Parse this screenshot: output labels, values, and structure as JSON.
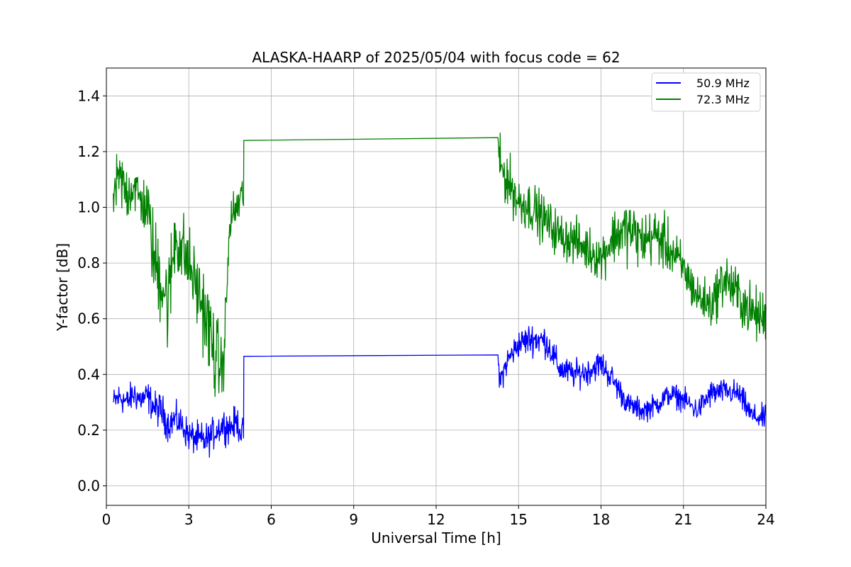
{
  "chart_data": {
    "type": "line",
    "title": "ALASKA-HAARP of 2025/05/04 with focus code = 62",
    "xlabel": "Universal Time [h]",
    "ylabel": "Y-factor [dB]",
    "xlim": [
      0,
      24
    ],
    "ylim": [
      -0.07,
      1.5
    ],
    "x_ticks": [
      "0",
      "3",
      "6",
      "9",
      "12",
      "15",
      "18",
      "21",
      "24"
    ],
    "x_tick_values": [
      0,
      3,
      6,
      9,
      12,
      15,
      18,
      21,
      24
    ],
    "y_ticks": [
      "0.0",
      "0.2",
      "0.4",
      "0.6",
      "0.8",
      "1.0",
      "1.2",
      "1.4"
    ],
    "y_tick_values": [
      0.0,
      0.2,
      0.4,
      0.6,
      0.8,
      1.0,
      1.2,
      1.4
    ],
    "grid": true,
    "legend_position": "top-right",
    "series": [
      {
        "name": "50.9 MHz",
        "color": "#0000ff",
        "points": [
          [
            0.25,
            0.3
          ],
          [
            0.5,
            0.32
          ],
          [
            0.75,
            0.3
          ],
          [
            1.0,
            0.33
          ],
          [
            1.25,
            0.31
          ],
          [
            1.5,
            0.32
          ],
          [
            1.75,
            0.28
          ],
          [
            2.0,
            0.27
          ],
          [
            2.25,
            0.22
          ],
          [
            2.5,
            0.24
          ],
          [
            2.75,
            0.22
          ],
          [
            3.0,
            0.18
          ],
          [
            3.25,
            0.17
          ],
          [
            3.5,
            0.16
          ],
          [
            3.75,
            0.17
          ],
          [
            4.0,
            0.2
          ],
          [
            4.25,
            0.22
          ],
          [
            4.5,
            0.21
          ],
          [
            4.75,
            0.23
          ],
          [
            4.99,
            0.18
          ],
          [
            5.0,
            0.465
          ],
          [
            14.25,
            0.47
          ],
          [
            14.3,
            0.37
          ],
          [
            14.6,
            0.45
          ],
          [
            15.0,
            0.51
          ],
          [
            15.5,
            0.53
          ],
          [
            16.0,
            0.52
          ],
          [
            16.5,
            0.42
          ],
          [
            17.0,
            0.4
          ],
          [
            17.5,
            0.41
          ],
          [
            18.0,
            0.44
          ],
          [
            18.5,
            0.37
          ],
          [
            19.0,
            0.29
          ],
          [
            19.5,
            0.27
          ],
          [
            20.0,
            0.29
          ],
          [
            20.5,
            0.33
          ],
          [
            21.0,
            0.31
          ],
          [
            21.5,
            0.27
          ],
          [
            22.0,
            0.33
          ],
          [
            22.5,
            0.34
          ],
          [
            23.0,
            0.33
          ],
          [
            23.5,
            0.25
          ],
          [
            24.0,
            0.24
          ]
        ],
        "spread": [
          0.06,
          0.07,
          0.06,
          0.07,
          0.06,
          0.07,
          0.07,
          0.08,
          0.07,
          0.07,
          0.07,
          0.07,
          0.07,
          0.08,
          0.07,
          0.07,
          0.07,
          0.07,
          0.07,
          0.07,
          0,
          0,
          0.06,
          0.06,
          0.06,
          0.07,
          0.07,
          0.06,
          0.06,
          0.06,
          0.06,
          0.06,
          0.05,
          0.05,
          0.05,
          0.05,
          0.05,
          0.05,
          0.06,
          0.05,
          0.06,
          0.05,
          0.06
        ]
      },
      {
        "name": "72.3 MHz",
        "color": "#008000",
        "points": [
          [
            0.25,
            1.05
          ],
          [
            0.5,
            1.1
          ],
          [
            0.75,
            1.05
          ],
          [
            1.0,
            1.08
          ],
          [
            1.25,
            1.02
          ],
          [
            1.5,
            1.0
          ],
          [
            1.75,
            0.8
          ],
          [
            2.0,
            0.75
          ],
          [
            2.25,
            0.65
          ],
          [
            2.5,
            0.9
          ],
          [
            2.75,
            0.85
          ],
          [
            3.0,
            0.8
          ],
          [
            3.25,
            0.72
          ],
          [
            3.5,
            0.65
          ],
          [
            3.75,
            0.55
          ],
          [
            4.0,
            0.45
          ],
          [
            4.25,
            0.42
          ],
          [
            4.5,
            0.95
          ],
          [
            4.75,
            1.0
          ],
          [
            4.99,
            1.05
          ],
          [
            5.0,
            1.24
          ],
          [
            14.25,
            1.25
          ],
          [
            14.3,
            1.15
          ],
          [
            14.6,
            1.1
          ],
          [
            15.0,
            1.02
          ],
          [
            15.5,
            1.0
          ],
          [
            16.0,
            0.95
          ],
          [
            16.5,
            0.9
          ],
          [
            17.0,
            0.88
          ],
          [
            17.5,
            0.85
          ],
          [
            18.0,
            0.82
          ],
          [
            18.5,
            0.9
          ],
          [
            19.0,
            0.92
          ],
          [
            19.5,
            0.88
          ],
          [
            20.0,
            0.9
          ],
          [
            20.5,
            0.85
          ],
          [
            21.0,
            0.78
          ],
          [
            21.5,
            0.68
          ],
          [
            22.0,
            0.65
          ],
          [
            22.5,
            0.75
          ],
          [
            23.0,
            0.68
          ],
          [
            23.5,
            0.62
          ],
          [
            24.0,
            0.6
          ]
        ],
        "spread": [
          0.12,
          0.14,
          0.13,
          0.12,
          0.12,
          0.13,
          0.2,
          0.22,
          0.22,
          0.18,
          0.18,
          0.16,
          0.16,
          0.18,
          0.2,
          0.2,
          0.12,
          0.1,
          0.1,
          0.1,
          0,
          0,
          0.12,
          0.12,
          0.11,
          0.11,
          0.1,
          0.1,
          0.1,
          0.1,
          0.1,
          0.12,
          0.14,
          0.12,
          0.12,
          0.12,
          0.1,
          0.1,
          0.1,
          0.12,
          0.12,
          0.12,
          0.12
        ]
      }
    ]
  }
}
